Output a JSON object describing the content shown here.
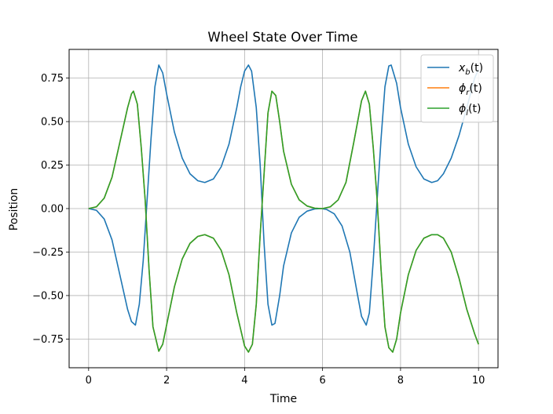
{
  "chart_data": {
    "type": "line",
    "title": "Wheel State Over Time",
    "xlabel": "Time",
    "ylabel": "Position",
    "xlim": [
      -0.5,
      10.5
    ],
    "ylim": [
      -0.915,
      0.915
    ],
    "grid": true,
    "legend_position": "top-right",
    "xticks": [
      0,
      2,
      4,
      6,
      8,
      10
    ],
    "yticks": [
      -0.75,
      -0.5,
      -0.25,
      0.0,
      0.25,
      0.5,
      0.75
    ],
    "xtick_labels": [
      "0",
      "2",
      "4",
      "6",
      "8",
      "10"
    ],
    "ytick_labels": [
      "−0.75",
      "−0.50",
      "−0.25",
      "0.00",
      "0.25",
      "0.50",
      "0.75"
    ],
    "series": [
      {
        "name": "x_b(t)",
        "legend_main": "x",
        "legend_sub": "b",
        "legend_suffix": "(t)",
        "color": "#1f77b4",
        "x": [
          0,
          0.2,
          0.4,
          0.6,
          0.8,
          1.0,
          1.1,
          1.2,
          1.3,
          1.4,
          1.5,
          1.6,
          1.7,
          1.8,
          1.9,
          2.0,
          2.2,
          2.4,
          2.6,
          2.8,
          2.98,
          3.2,
          3.4,
          3.6,
          3.8,
          3.9,
          4.0,
          4.1,
          4.18,
          4.3,
          4.4,
          4.5,
          4.6,
          4.7,
          4.78,
          4.9,
          5.0,
          5.2,
          5.4,
          5.6,
          5.8,
          5.96,
          6.1,
          6.3,
          6.5,
          6.7,
          6.9,
          7.0,
          7.12,
          7.2,
          7.3,
          7.4,
          7.5,
          7.6,
          7.7,
          7.76,
          7.9,
          8.0,
          8.2,
          8.4,
          8.6,
          8.8,
          8.95,
          9.1,
          9.3,
          9.5,
          9.7,
          9.9,
          10.0
        ],
        "y": [
          0.0,
          -0.01,
          -0.06,
          -0.18,
          -0.38,
          -0.58,
          -0.65,
          -0.67,
          -0.55,
          -0.3,
          0.05,
          0.4,
          0.7,
          0.825,
          0.78,
          0.66,
          0.44,
          0.29,
          0.2,
          0.16,
          0.15,
          0.17,
          0.24,
          0.37,
          0.58,
          0.7,
          0.79,
          0.825,
          0.79,
          0.58,
          0.25,
          -0.2,
          -0.55,
          -0.67,
          -0.66,
          -0.5,
          -0.33,
          -0.14,
          -0.05,
          -0.015,
          -0.002,
          0.0,
          -0.005,
          -0.03,
          -0.1,
          -0.25,
          -0.5,
          -0.62,
          -0.67,
          -0.6,
          -0.3,
          0.05,
          0.4,
          0.7,
          0.82,
          0.825,
          0.72,
          0.58,
          0.37,
          0.24,
          0.17,
          0.15,
          0.16,
          0.2,
          0.29,
          0.42,
          0.58,
          0.75,
          0.8
        ]
      },
      {
        "name": "ϕ_r(t)",
        "legend_main": "ϕ",
        "legend_sub": "r",
        "legend_suffix": "(t)",
        "color": "#ff7f0e",
        "x": [
          0,
          0.2,
          0.4,
          0.6,
          0.8,
          1.0,
          1.1,
          1.15,
          1.25,
          1.35,
          1.45,
          1.55,
          1.65,
          1.8,
          1.9,
          2.0,
          2.2,
          2.4,
          2.6,
          2.8,
          2.98,
          3.2,
          3.4,
          3.6,
          3.8,
          4.0,
          4.1,
          4.2,
          4.3,
          4.4,
          4.5,
          4.6,
          4.7,
          4.8,
          4.9,
          5.0,
          5.2,
          5.4,
          5.6,
          5.8,
          6.0,
          6.2,
          6.4,
          6.6,
          6.8,
          7.0,
          7.1,
          7.2,
          7.3,
          7.4,
          7.5,
          7.6,
          7.7,
          7.8,
          7.9,
          8.0,
          8.2,
          8.4,
          8.6,
          8.8,
          8.95,
          9.1,
          9.3,
          9.5,
          9.7,
          9.9,
          10.0
        ],
        "y": [
          0.0,
          0.01,
          0.06,
          0.18,
          0.38,
          0.58,
          0.66,
          0.675,
          0.6,
          0.35,
          0.05,
          -0.35,
          -0.68,
          -0.82,
          -0.78,
          -0.67,
          -0.45,
          -0.29,
          -0.2,
          -0.16,
          -0.15,
          -0.17,
          -0.24,
          -0.38,
          -0.6,
          -0.79,
          -0.825,
          -0.78,
          -0.55,
          -0.15,
          0.2,
          0.55,
          0.675,
          0.65,
          0.5,
          0.33,
          0.14,
          0.05,
          0.015,
          0.002,
          0.0,
          0.01,
          0.05,
          0.15,
          0.38,
          0.62,
          0.675,
          0.6,
          0.35,
          0.05,
          -0.35,
          -0.68,
          -0.8,
          -0.825,
          -0.75,
          -0.6,
          -0.38,
          -0.24,
          -0.17,
          -0.15,
          -0.15,
          -0.17,
          -0.25,
          -0.4,
          -0.58,
          -0.72,
          -0.78
        ]
      },
      {
        "name": "ϕ_l(t)",
        "legend_main": "ϕ",
        "legend_sub": "l",
        "legend_suffix": "(t)",
        "color": "#2ca02c",
        "x": [
          0,
          0.2,
          0.4,
          0.6,
          0.8,
          1.0,
          1.1,
          1.15,
          1.25,
          1.35,
          1.45,
          1.55,
          1.65,
          1.8,
          1.9,
          2.0,
          2.2,
          2.4,
          2.6,
          2.8,
          2.98,
          3.2,
          3.4,
          3.6,
          3.8,
          4.0,
          4.1,
          4.2,
          4.3,
          4.4,
          4.5,
          4.6,
          4.7,
          4.8,
          4.9,
          5.0,
          5.2,
          5.4,
          5.6,
          5.8,
          6.0,
          6.2,
          6.4,
          6.6,
          6.8,
          7.0,
          7.1,
          7.2,
          7.3,
          7.4,
          7.5,
          7.6,
          7.7,
          7.8,
          7.9,
          8.0,
          8.2,
          8.4,
          8.6,
          8.8,
          8.95,
          9.1,
          9.3,
          9.5,
          9.7,
          9.9,
          10.0
        ],
        "y": [
          0.0,
          0.01,
          0.06,
          0.18,
          0.38,
          0.58,
          0.66,
          0.675,
          0.6,
          0.35,
          0.05,
          -0.35,
          -0.68,
          -0.82,
          -0.78,
          -0.67,
          -0.45,
          -0.29,
          -0.2,
          -0.16,
          -0.15,
          -0.17,
          -0.24,
          -0.38,
          -0.6,
          -0.79,
          -0.825,
          -0.78,
          -0.55,
          -0.15,
          0.2,
          0.55,
          0.675,
          0.65,
          0.5,
          0.33,
          0.14,
          0.05,
          0.015,
          0.002,
          0.0,
          0.01,
          0.05,
          0.15,
          0.38,
          0.62,
          0.675,
          0.6,
          0.35,
          0.05,
          -0.35,
          -0.68,
          -0.8,
          -0.825,
          -0.75,
          -0.6,
          -0.38,
          -0.24,
          -0.17,
          -0.15,
          -0.15,
          -0.17,
          -0.25,
          -0.4,
          -0.58,
          -0.72,
          -0.78
        ]
      }
    ]
  }
}
